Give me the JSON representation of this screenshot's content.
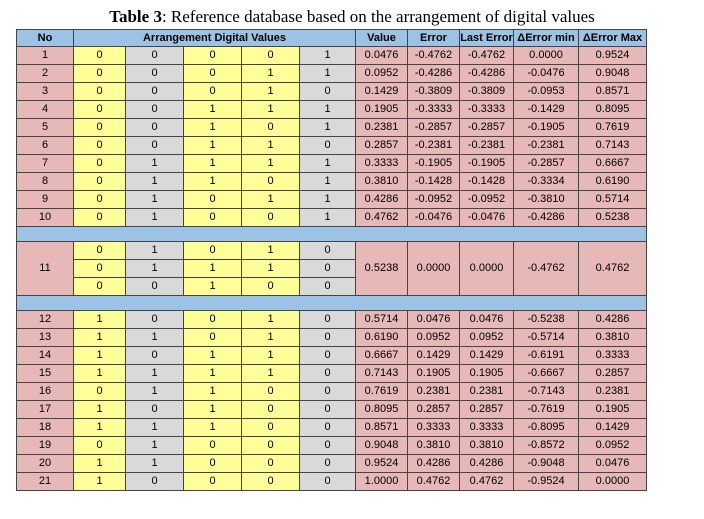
{
  "caption": {
    "label": "Table 3",
    "text": ": Reference database based on the arrangement of digital values"
  },
  "headers": {
    "no": "No",
    "arrangement": "Arrangement Digital Values",
    "value": "Value",
    "error": "Error",
    "last_error": "Last Error",
    "derr_min": "ΔError min",
    "derr_max": "ΔError Max"
  },
  "colors": {
    "header": "#9cc2e6",
    "pink": "#e6b8b7",
    "yellow": "#ffff99",
    "gray": "#d9d9d9"
  },
  "group1": [
    {
      "no": "1",
      "bits": [
        "0",
        "0",
        "0",
        "0",
        "1"
      ],
      "value": "0.0476",
      "error": "-0.4762",
      "last_error": "-0.4762",
      "derr_min": "0.0000",
      "derr_max": "0.9524"
    },
    {
      "no": "2",
      "bits": [
        "0",
        "0",
        "0",
        "1",
        "1"
      ],
      "value": "0.0952",
      "error": "-0.4286",
      "last_error": "-0.4286",
      "derr_min": "-0.0476",
      "derr_max": "0.9048"
    },
    {
      "no": "3",
      "bits": [
        "0",
        "0",
        "0",
        "1",
        "0"
      ],
      "value": "0.1429",
      "error": "-0.3809",
      "last_error": "-0.3809",
      "derr_min": "-0.0953",
      "derr_max": "0.8571"
    },
    {
      "no": "4",
      "bits": [
        "0",
        "0",
        "1",
        "1",
        "1"
      ],
      "value": "0.1905",
      "error": "-0.3333",
      "last_error": "-0.3333",
      "derr_min": "-0.1429",
      "derr_max": "0.8095"
    },
    {
      "no": "5",
      "bits": [
        "0",
        "0",
        "1",
        "0",
        "1"
      ],
      "value": "0.2381",
      "error": "-0.2857",
      "last_error": "-0.2857",
      "derr_min": "-0.1905",
      "derr_max": "0.7619"
    },
    {
      "no": "6",
      "bits": [
        "0",
        "0",
        "1",
        "1",
        "0"
      ],
      "value": "0.2857",
      "error": "-0.2381",
      "last_error": "-0.2381",
      "derr_min": "-0.2381",
      "derr_max": "0.7143"
    },
    {
      "no": "7",
      "bits": [
        "0",
        "1",
        "1",
        "1",
        "1"
      ],
      "value": "0.3333",
      "error": "-0.1905",
      "last_error": "-0.1905",
      "derr_min": "-0.2857",
      "derr_max": "0.6667"
    },
    {
      "no": "8",
      "bits": [
        "0",
        "1",
        "1",
        "0",
        "1"
      ],
      "value": "0.3810",
      "error": "-0.1428",
      "last_error": "-0.1428",
      "derr_min": "-0.3334",
      "derr_max": "0.6190"
    },
    {
      "no": "9",
      "bits": [
        "0",
        "1",
        "0",
        "1",
        "1"
      ],
      "value": "0.4286",
      "error": "-0.0952",
      "last_error": "-0.0952",
      "derr_min": "-0.3810",
      "derr_max": "0.5714"
    },
    {
      "no": "10",
      "bits": [
        "0",
        "1",
        "0",
        "0",
        "1"
      ],
      "value": "0.4762",
      "error": "-0.0476",
      "last_error": "-0.0476",
      "derr_min": "-0.4286",
      "derr_max": "0.5238"
    }
  ],
  "group2": {
    "no": "11",
    "bit_rows": [
      [
        "0",
        "1",
        "0",
        "1",
        "0"
      ],
      [
        "0",
        "1",
        "1",
        "1",
        "0"
      ],
      [
        "0",
        "0",
        "1",
        "0",
        "0"
      ]
    ],
    "value": "0.5238",
    "error": "0.0000",
    "last_error": "0.0000",
    "derr_min": "-0.4762",
    "derr_max": "0.4762"
  },
  "group3": [
    {
      "no": "12",
      "bits": [
        "1",
        "0",
        "0",
        "1",
        "0"
      ],
      "value": "0.5714",
      "error": "0.0476",
      "last_error": "0.0476",
      "derr_min": "-0.5238",
      "derr_max": "0.4286"
    },
    {
      "no": "13",
      "bits": [
        "1",
        "1",
        "0",
        "1",
        "0"
      ],
      "value": "0.6190",
      "error": "0.0952",
      "last_error": "0.0952",
      "derr_min": "-0.5714",
      "derr_max": "0.3810"
    },
    {
      "no": "14",
      "bits": [
        "1",
        "0",
        "1",
        "1",
        "0"
      ],
      "value": "0.6667",
      "error": "0.1429",
      "last_error": "0.1429",
      "derr_min": "-0.6191",
      "derr_max": "0.3333"
    },
    {
      "no": "15",
      "bits": [
        "1",
        "1",
        "1",
        "1",
        "0"
      ],
      "value": "0.7143",
      "error": "0.1905",
      "last_error": "0.1905",
      "derr_min": "-0.6667",
      "derr_max": "0.2857"
    },
    {
      "no": "16",
      "bits": [
        "0",
        "1",
        "1",
        "0",
        "0"
      ],
      "value": "0.7619",
      "error": "0.2381",
      "last_error": "0.2381",
      "derr_min": "-0.7143",
      "derr_max": "0.2381"
    },
    {
      "no": "17",
      "bits": [
        "1",
        "0",
        "1",
        "0",
        "0"
      ],
      "value": "0.8095",
      "error": "0.2857",
      "last_error": "0.2857",
      "derr_min": "-0.7619",
      "derr_max": "0.1905"
    },
    {
      "no": "18",
      "bits": [
        "1",
        "1",
        "1",
        "0",
        "0"
      ],
      "value": "0.8571",
      "error": "0.3333",
      "last_error": "0.3333",
      "derr_min": "-0.8095",
      "derr_max": "0.1429"
    },
    {
      "no": "19",
      "bits": [
        "0",
        "1",
        "0",
        "0",
        "0"
      ],
      "value": "0.9048",
      "error": "0.3810",
      "last_error": "0.3810",
      "derr_min": "-0.8572",
      "derr_max": "0.0952"
    },
    {
      "no": "20",
      "bits": [
        "1",
        "1",
        "0",
        "0",
        "0"
      ],
      "value": "0.9524",
      "error": "0.4286",
      "last_error": "0.4286",
      "derr_min": "-0.9048",
      "derr_max": "0.0476"
    },
    {
      "no": "21",
      "bits": [
        "1",
        "0",
        "0",
        "0",
        "0"
      ],
      "value": "1.0000",
      "error": "0.4762",
      "last_error": "0.4762",
      "derr_min": "-0.9524",
      "derr_max": "0.0000"
    }
  ]
}
